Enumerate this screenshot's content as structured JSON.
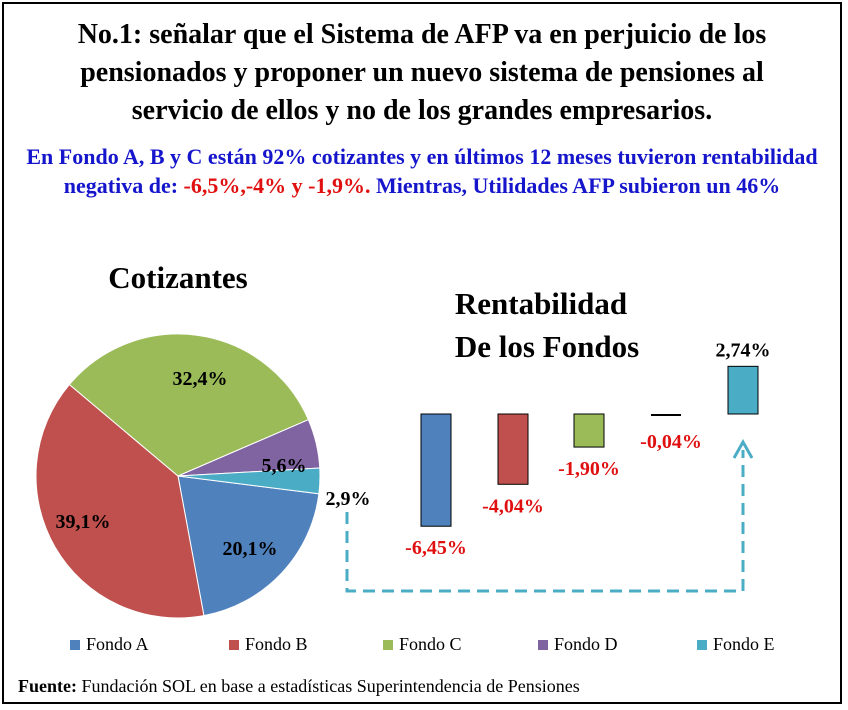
{
  "headline": "No.1: señalar que el Sistema de AFP va en perjuicio de los\npensionados y proponer un nuevo sistema de pensiones al\nservicio de ellos y no de los grandes empresarios.",
  "subhead": {
    "part1": "En Fondo A, B y C están 92% cotizantes y en últimos 12 meses tuvieron rentabilidad negativa de: ",
    "part2": "-6,5%,-4% y -1,9%.",
    "part3": " Mientras, Utilidades AFP subieron un 46%"
  },
  "source": {
    "label": "Fuente:",
    "text": " Fundación SOL en base a estadísticas Superintendencia de Pensiones"
  },
  "colors": {
    "fondo_a": "#4f81bd",
    "fondo_b": "#c0504d",
    "fondo_c": "#9bbb59",
    "fondo_d": "#8064a2",
    "fondo_e": "#4bacc6",
    "negative_label": "#e01010",
    "arrow": "#4bacc6"
  },
  "chart_data": [
    {
      "type": "pie",
      "title": "Cotizantes",
      "categories": [
        "Fondo A",
        "Fondo B",
        "Fondo C",
        "Fondo D",
        "Fondo E"
      ],
      "values": [
        20.1,
        39.1,
        32.4,
        5.6,
        2.9
      ],
      "labels": [
        "20,1%",
        "39,1%",
        "32,4%",
        "5,6%",
        "2,9%"
      ]
    },
    {
      "type": "bar",
      "title": "Rentabilidad De los Fondos",
      "title_lines": [
        "Rentabilidad",
        "De los Fondos"
      ],
      "categories": [
        "Fondo A",
        "Fondo B",
        "Fondo C",
        "Fondo D",
        "Fondo E"
      ],
      "values": [
        -6.45,
        -4.04,
        -1.9,
        -0.04,
        2.74
      ],
      "labels": [
        "-6,45%",
        "-4,04%",
        "-1,90%",
        "-0,04%",
        "2,74%"
      ]
    }
  ],
  "legend": [
    "Fondo A",
    "Fondo B",
    "Fondo C",
    "Fondo D",
    "Fondo E"
  ]
}
